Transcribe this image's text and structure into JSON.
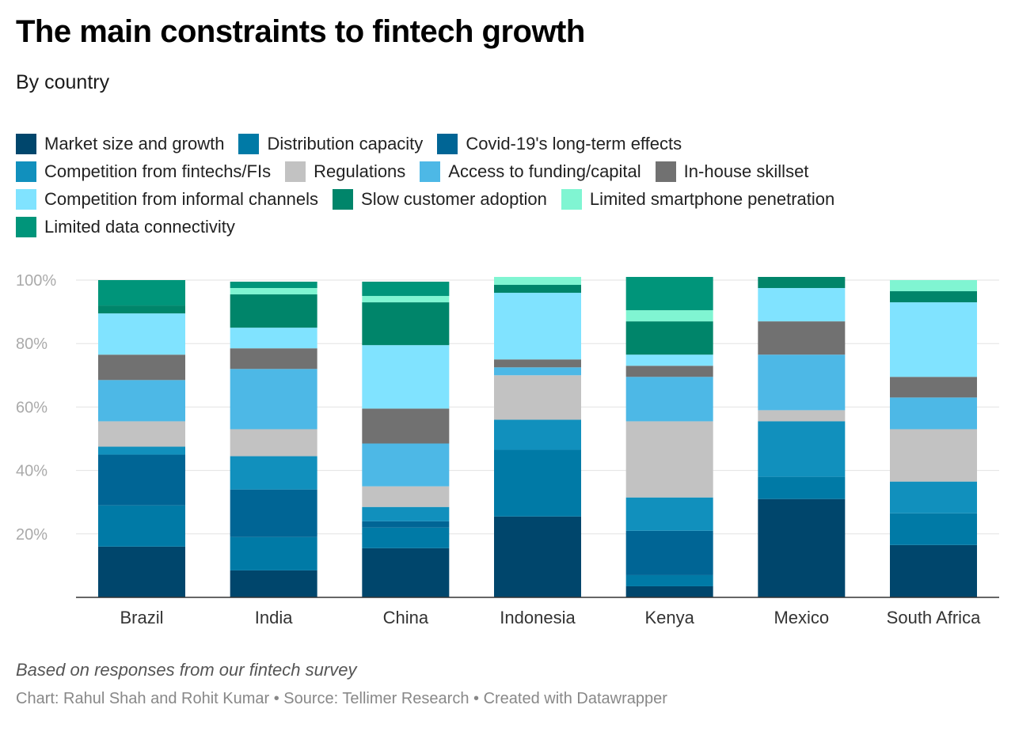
{
  "header": {
    "title": "The main constraints to fintech growth",
    "subtitle": "By country"
  },
  "footer": {
    "note": "Based on responses from our fintech survey",
    "source": "Chart: Rahul Shah and Rohit Kumar • Source: Tellimer Research • Created with Datawrapper"
  },
  "chart_data": {
    "type": "bar",
    "stacked": true,
    "title": "The main constraints to fintech growth",
    "subtitle": "By country",
    "xlabel": "",
    "ylabel": "",
    "ylim": [
      0,
      100
    ],
    "yticks": [
      20,
      40,
      60,
      80,
      100
    ],
    "ytick_labels": [
      "20%",
      "40%",
      "60%",
      "80%",
      "100%"
    ],
    "grid": true,
    "legend_position": "top",
    "categories": [
      "Brazil",
      "India",
      "China",
      "Indonesia",
      "Kenya",
      "Mexico",
      "South Africa"
    ],
    "series": [
      {
        "name": "Market size and growth",
        "color": "#00466c",
        "values": [
          16,
          8.5,
          15.5,
          25.5,
          3.5,
          31,
          16.5
        ]
      },
      {
        "name": "Distribution capacity",
        "color": "#007aa6",
        "values": [
          13,
          10.5,
          6.5,
          21,
          3.5,
          7,
          10
        ]
      },
      {
        "name": "Covid-19's long-term effects",
        "color": "#006595",
        "values": [
          16,
          15,
          2,
          0,
          14,
          0,
          0
        ]
      },
      {
        "name": "Competition from fintechs/FIs",
        "color": "#1190bd",
        "values": [
          2.5,
          10.5,
          4.5,
          9.5,
          10.5,
          17.5,
          10
        ]
      },
      {
        "name": "Regulations",
        "color": "#c2c2c2",
        "values": [
          8,
          8.5,
          6.5,
          14,
          24,
          3.5,
          16.5
        ]
      },
      {
        "name": "Access to funding/capital",
        "color": "#4db8e6",
        "values": [
          13,
          19,
          13.5,
          2.5,
          14,
          17.5,
          10
        ]
      },
      {
        "name": "In-house skillset",
        "color": "#717171",
        "values": [
          8,
          6.5,
          11,
          2.5,
          3.5,
          10.5,
          6.5
        ]
      },
      {
        "name": "Competition from informal channels",
        "color": "#80e3ff",
        "values": [
          13,
          6.5,
          20,
          21,
          3.5,
          10.5,
          23.5
        ]
      },
      {
        "name": "Slow customer adoption",
        "color": "#00856a",
        "values": [
          2.5,
          10.5,
          13.5,
          2.5,
          10.5,
          3.5,
          3.5
        ]
      },
      {
        "name": "Limited smartphone penetration",
        "color": "#80f5d2",
        "values": [
          0,
          2,
          2,
          2.5,
          3.5,
          0,
          3.5
        ]
      },
      {
        "name": "Limited data connectivity",
        "color": "#00957a",
        "values": [
          8,
          2,
          4.5,
          0,
          10.5,
          0,
          0
        ]
      }
    ]
  }
}
